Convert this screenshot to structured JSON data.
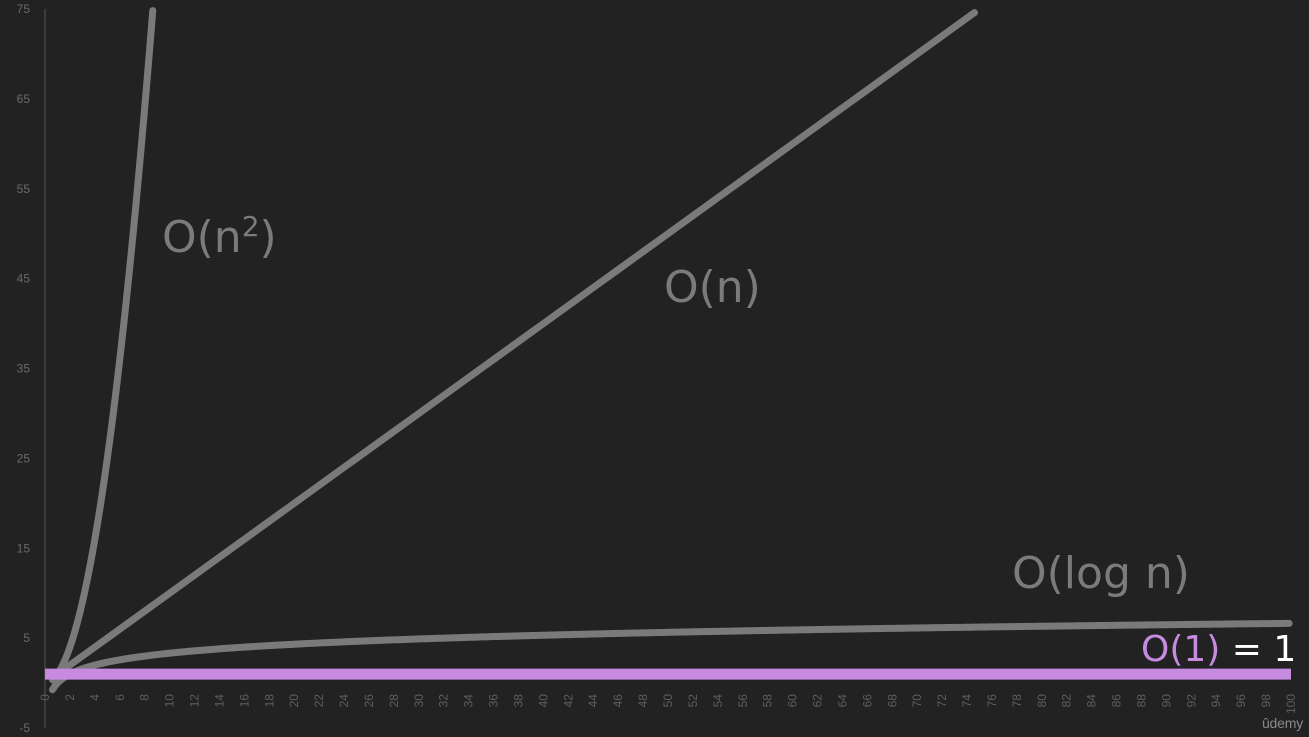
{
  "colors": {
    "background": "#222222",
    "axis": "#555555",
    "curve": "#7a7a7a",
    "constant": "#c68be0",
    "label_white": "#ffffff"
  },
  "brand": "ûdemy",
  "labels": {
    "n_squared_prefix": "O(n",
    "n_squared_exp": "2",
    "n_squared_suffix": ")",
    "linear": "O(n)",
    "log": "O(log n)",
    "constant_part": "O(1)",
    "constant_equals": " = 1"
  },
  "chart_data": {
    "type": "line",
    "title": "",
    "xlabel": "",
    "ylabel": "",
    "xlim": [
      0,
      100
    ],
    "ylim": [
      -5,
      75
    ],
    "x_ticks": [
      0,
      2,
      4,
      6,
      8,
      10,
      12,
      14,
      16,
      18,
      20,
      22,
      24,
      26,
      28,
      30,
      32,
      34,
      36,
      38,
      40,
      42,
      44,
      46,
      48,
      50,
      52,
      54,
      56,
      58,
      60,
      62,
      64,
      66,
      68,
      70,
      72,
      74,
      76,
      78,
      80,
      82,
      84,
      86,
      88,
      90,
      92,
      94,
      96,
      98,
      100
    ],
    "y_ticks": [
      -5,
      5,
      15,
      25,
      35,
      45,
      55,
      65,
      75
    ],
    "grid": false,
    "legend": "none",
    "series": [
      {
        "label_key": "n_squared",
        "function": "n^2",
        "color": "#7a7a7a"
      },
      {
        "label_key": "linear",
        "function": "n",
        "color": "#7a7a7a"
      },
      {
        "label_key": "log",
        "function": "log2(n)",
        "color": "#7a7a7a"
      },
      {
        "label_key": "constant",
        "function": "1",
        "color": "#c68be0"
      }
    ]
  }
}
